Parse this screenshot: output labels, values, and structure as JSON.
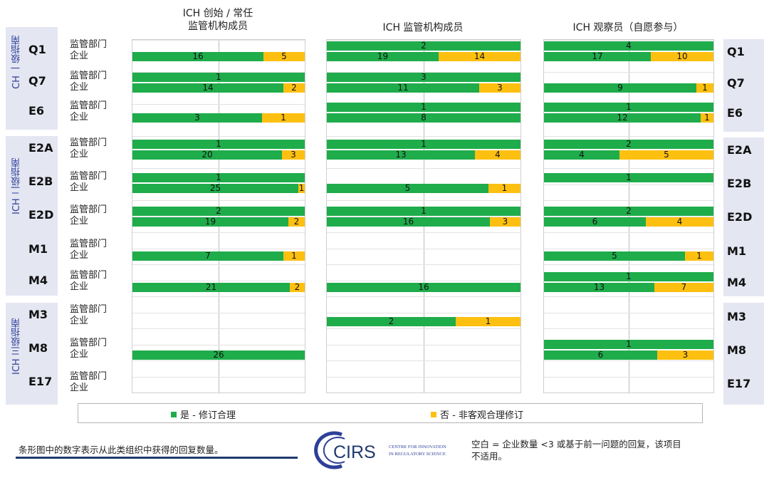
{
  "panel_titles": [
    "ICH 创始 / 常任\n监管机构成员",
    "ICH 监管机构成员",
    "ICH 观察员（自愿参与）"
  ],
  "groups": [
    {
      "label": "CH 一级指南",
      "codes": [
        "Q1",
        "Q7",
        "E6"
      ]
    },
    {
      "label": "ICH 二级指南",
      "codes": [
        "E2A",
        "E2B",
        "E2D",
        "M1",
        "M4"
      ]
    },
    {
      "label": "ICH 三级指南",
      "codes": [
        "M3",
        "M8",
        "E17"
      ]
    }
  ],
  "row_labels": {
    "regulator": "监管部门",
    "industry": "企业"
  },
  "legend": {
    "yes": "是 - 修订合理",
    "no": "否 - 非客观合理修订"
  },
  "colors": {
    "yes": "#1fac4b",
    "no": "#fdc010",
    "group_bg": "#e4e6f2",
    "group_text": "#2e3f99"
  },
  "footnote_left": "条形图中的数字表示从此类组织中获得的回复数量。",
  "footnote_right": "空白 = 企业数量 <3 或基于前一问题的回复，该项目\n不适用。",
  "logo": {
    "name": "CIRS",
    "line1": "CENTRE FOR INNOVATION",
    "line2": "IN REGULATORY SCIENCE"
  },
  "chart_data": {
    "type": "bar",
    "orientation": "horizontal",
    "stacked": "100%",
    "series_names": [
      "是 - 修订合理",
      "否 - 非客观合理修订"
    ],
    "panels": [
      {
        "title": "ICH 创始 / 常任 监管机构成员",
        "rows": [
          {
            "code": "Q1",
            "regulator": null,
            "industry": [
              16,
              5
            ]
          },
          {
            "code": "Q7",
            "regulator": [
              1,
              0
            ],
            "industry": [
              14,
              2
            ]
          },
          {
            "code": "E6",
            "regulator": null,
            "industry": [
              3,
              1
            ]
          },
          {
            "code": "E2A",
            "regulator": [
              1,
              0
            ],
            "industry": [
              20,
              3
            ]
          },
          {
            "code": "E2B",
            "regulator": [
              1,
              0
            ],
            "industry": [
              25,
              1
            ]
          },
          {
            "code": "E2D",
            "regulator": [
              2,
              0
            ],
            "industry": [
              19,
              2
            ]
          },
          {
            "code": "M1",
            "regulator": null,
            "industry": [
              7,
              1
            ]
          },
          {
            "code": "M4",
            "regulator": null,
            "industry": [
              21,
              2
            ]
          },
          {
            "code": "M3",
            "regulator": null,
            "industry": null
          },
          {
            "code": "M8",
            "regulator": null,
            "industry": [
              26,
              0
            ]
          },
          {
            "code": "E17",
            "regulator": null,
            "industry": null
          }
        ]
      },
      {
        "title": "ICH 监管机构成员",
        "rows": [
          {
            "code": "Q1",
            "regulator": [
              2,
              0
            ],
            "industry": [
              19,
              14
            ]
          },
          {
            "code": "Q7",
            "regulator": [
              3,
              0
            ],
            "industry": [
              11,
              3
            ]
          },
          {
            "code": "E6",
            "regulator": [
              1,
              0
            ],
            "industry": [
              8,
              0
            ]
          },
          {
            "code": "E2A",
            "regulator": [
              1,
              0
            ],
            "industry": [
              13,
              4
            ]
          },
          {
            "code": "E2B",
            "regulator": null,
            "industry": [
              5,
              1
            ]
          },
          {
            "code": "E2D",
            "regulator": [
              1,
              0
            ],
            "industry": [
              16,
              3
            ]
          },
          {
            "code": "M1",
            "regulator": null,
            "industry": null
          },
          {
            "code": "M4",
            "regulator": null,
            "industry": [
              16,
              0
            ]
          },
          {
            "code": "M3",
            "regulator": null,
            "industry": [
              2,
              1
            ]
          },
          {
            "code": "M8",
            "regulator": null,
            "industry": null
          },
          {
            "code": "E17",
            "regulator": null,
            "industry": null
          }
        ]
      },
      {
        "title": "ICH 观察员（自愿参与）",
        "rows": [
          {
            "code": "Q1",
            "regulator": [
              4,
              0
            ],
            "industry": [
              17,
              10
            ]
          },
          {
            "code": "Q7",
            "regulator": null,
            "industry": [
              9,
              1
            ]
          },
          {
            "code": "E6",
            "regulator": [
              1,
              0
            ],
            "industry": [
              12,
              1
            ]
          },
          {
            "code": "E2A",
            "regulator": [
              2,
              0
            ],
            "industry": [
              4,
              5
            ]
          },
          {
            "code": "E2B",
            "regulator": [
              1,
              0
            ],
            "industry": null
          },
          {
            "code": "E2D",
            "regulator": [
              2,
              0
            ],
            "industry": [
              6,
              4
            ]
          },
          {
            "code": "M1",
            "regulator": null,
            "industry": [
              5,
              1
            ]
          },
          {
            "code": "M4",
            "regulator": [
              1,
              0
            ],
            "industry": [
              13,
              7
            ]
          },
          {
            "code": "M3",
            "regulator": null,
            "industry": null
          },
          {
            "code": "M8",
            "regulator": [
              1,
              0
            ],
            "industry": [
              6,
              3
            ]
          },
          {
            "code": "E17",
            "regulator": null,
            "industry": null
          }
        ]
      }
    ]
  }
}
